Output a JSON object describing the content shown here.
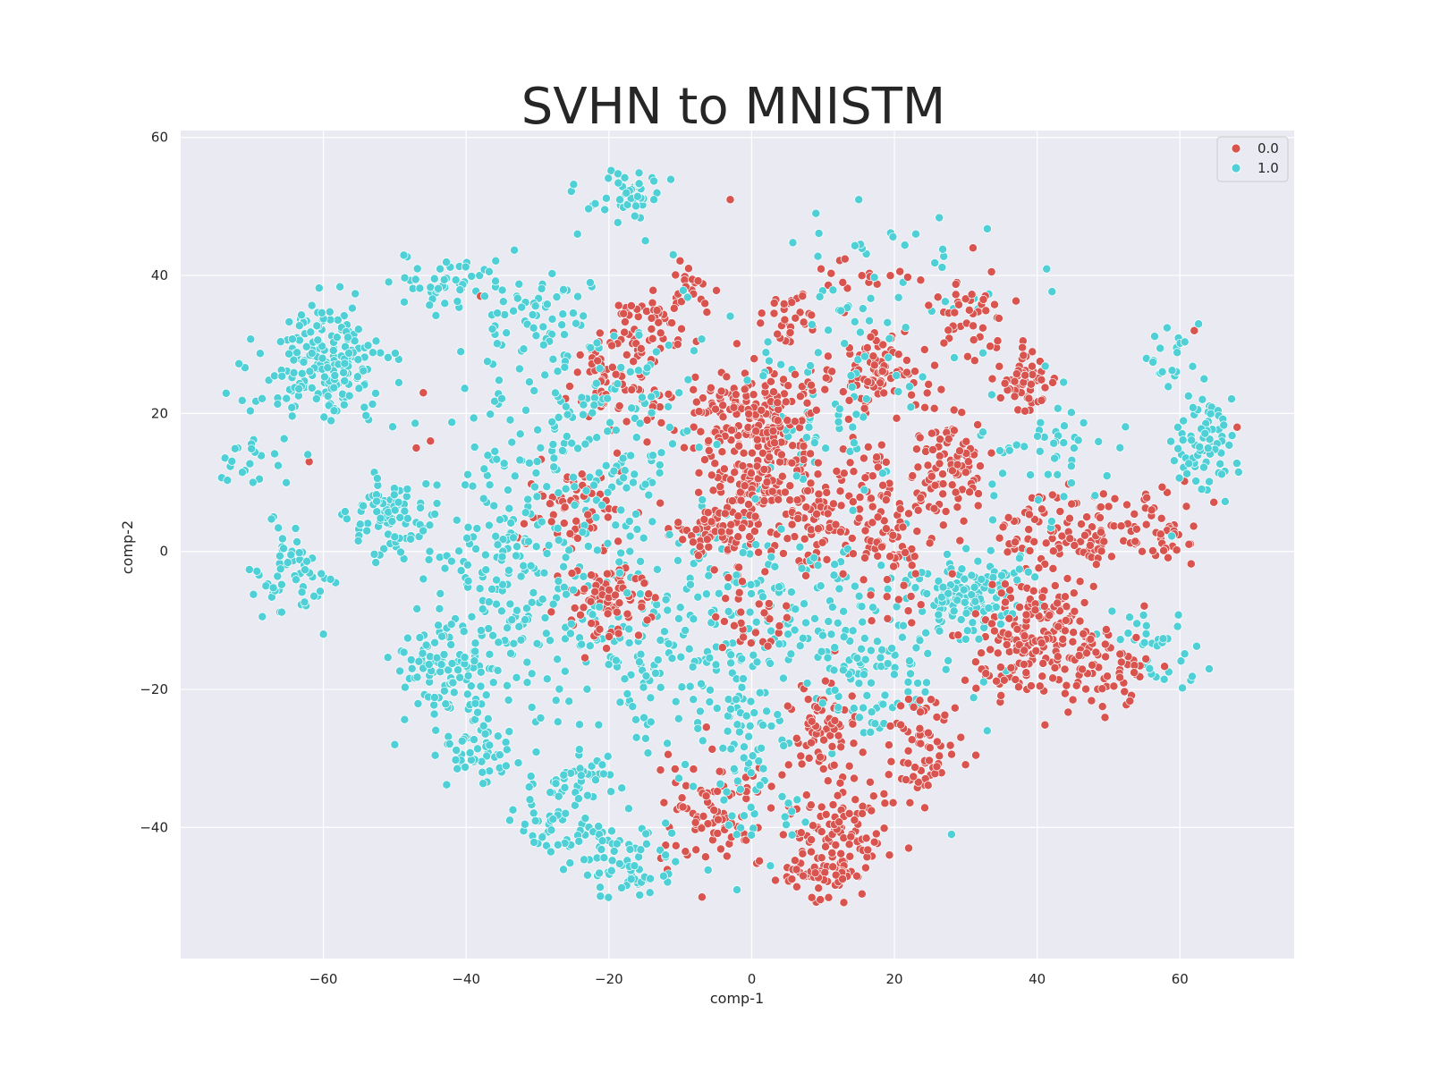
{
  "chart_data": {
    "type": "scatter",
    "title": "SVHN to MNISTM",
    "xlabel": "comp-1",
    "ylabel": "comp-2",
    "xlim": [
      -80,
      76
    ],
    "ylim": [
      -59,
      61
    ],
    "xticks": [
      -60,
      -40,
      -20,
      0,
      20,
      40,
      60
    ],
    "yticks": [
      -40,
      -20,
      0,
      20,
      40,
      60
    ],
    "grid": true,
    "legend_position": "top-right",
    "series": [
      {
        "name": "0.0",
        "color": "#d9534f",
        "clusters": [
          {
            "cx": -2,
            "cy": 20,
            "sx": 5,
            "sy": 4,
            "n": 140
          },
          {
            "cx": 4,
            "cy": 18,
            "sx": 3,
            "sy": 5,
            "n": 90
          },
          {
            "cx": 18,
            "cy": 26,
            "sx": 3,
            "sy": 3,
            "n": 95
          },
          {
            "cx": 28,
            "cy": 13,
            "sx": 3,
            "sy": 4,
            "n": 95
          },
          {
            "cx": 38,
            "cy": 25,
            "sx": 2.5,
            "sy": 2.5,
            "n": 60
          },
          {
            "cx": 42,
            "cy": -12,
            "sx": 4.5,
            "sy": 4,
            "n": 170
          },
          {
            "cx": 45,
            "cy": 3,
            "sx": 5,
            "sy": 3,
            "n": 110
          },
          {
            "cx": 58,
            "cy": 4,
            "sx": 3,
            "sy": 3,
            "n": 40
          },
          {
            "cx": -20,
            "cy": -7,
            "sx": 3.5,
            "sy": 3,
            "n": 90
          },
          {
            "cx": -25,
            "cy": 6,
            "sx": 3.5,
            "sy": 3,
            "n": 60
          },
          {
            "cx": -20,
            "cy": 25,
            "sx": 3,
            "sy": 4,
            "n": 70
          },
          {
            "cx": -14,
            "cy": 32,
            "sx": 3,
            "sy": 3,
            "n": 50
          },
          {
            "cx": -5,
            "cy": 3,
            "sx": 3,
            "sy": 2.5,
            "n": 70
          },
          {
            "cx": 12,
            "cy": -40,
            "sx": 3.5,
            "sy": 4.5,
            "n": 110
          },
          {
            "cx": -5,
            "cy": -38,
            "sx": 4,
            "sy": 4,
            "n": 90
          },
          {
            "cx": 10,
            "cy": -26,
            "sx": 2.5,
            "sy": 3.5,
            "n": 60
          },
          {
            "cx": 24,
            "cy": -28,
            "sx": 3,
            "sy": 4,
            "n": 70
          },
          {
            "cx": 20,
            "cy": 0,
            "sx": 3,
            "sy": 4,
            "n": 70
          },
          {
            "cx": 8,
            "cy": 4,
            "sx": 5,
            "sy": 3,
            "n": 90
          },
          {
            "cx": 5,
            "cy": 34,
            "sx": 3,
            "sy": 2,
            "n": 30
          },
          {
            "cx": 30,
            "cy": 35,
            "sx": 3,
            "sy": 3,
            "n": 40
          },
          {
            "cx": 0,
            "cy": -10,
            "sx": 3,
            "sy": 3,
            "n": 30
          },
          {
            "cx": 0,
            "cy": 10,
            "sx": 4,
            "sy": 3,
            "n": 80
          },
          {
            "cx": -9,
            "cy": 38,
            "sx": 2,
            "sy": 2,
            "n": 20
          },
          {
            "cx": 15,
            "cy": 40,
            "sx": 3,
            "sy": 1.5,
            "n": 15
          },
          {
            "cx": 10,
            "cy": -48,
            "sx": 3,
            "sy": 2,
            "n": 40
          },
          {
            "cx": 35,
            "cy": -15,
            "sx": 3,
            "sy": 4,
            "n": 40
          },
          {
            "cx": 50,
            "cy": -18,
            "sx": 3,
            "sy": 3,
            "n": 40
          },
          {
            "cx": 15,
            "cy": 10,
            "sx": 3,
            "sy": 3,
            "n": 40
          }
        ],
        "extra_points": [
          [
            -46,
            23
          ],
          [
            -62,
            13
          ],
          [
            -3,
            51
          ],
          [
            31,
            44
          ],
          [
            62,
            32
          ],
          [
            68,
            18
          ],
          [
            -45,
            16
          ],
          [
            -47,
            15
          ],
          [
            -38,
            37
          ],
          [
            22,
            -43
          ]
        ]
      },
      {
        "name": "1.0",
        "color": "#4fd0d6",
        "clusters": [
          {
            "cx": -60,
            "cy": 27,
            "sx": 4.5,
            "sy": 4,
            "n": 200
          },
          {
            "cx": -50,
            "cy": 5,
            "sx": 3,
            "sy": 3,
            "n": 80
          },
          {
            "cx": -64,
            "cy": -3,
            "sx": 2.5,
            "sy": 3,
            "n": 60
          },
          {
            "cx": -44,
            "cy": -17,
            "sx": 3.5,
            "sy": 3,
            "n": 90
          },
          {
            "cx": -38,
            "cy": -28,
            "sx": 3,
            "sy": 3,
            "n": 60
          },
          {
            "cx": -43,
            "cy": 39,
            "sx": 3,
            "sy": 2,
            "n": 40
          },
          {
            "cx": -17,
            "cy": 52,
            "sx": 2.5,
            "sy": 2,
            "n": 45
          },
          {
            "cx": 30,
            "cy": -6,
            "sx": 4,
            "sy": 3,
            "n": 140
          },
          {
            "cx": 63,
            "cy": 14,
            "sx": 2.5,
            "sy": 4,
            "n": 60
          },
          {
            "cx": 58,
            "cy": 29,
            "sx": 2,
            "sy": 2,
            "n": 20
          },
          {
            "cx": 64,
            "cy": 21,
            "sx": 1.5,
            "sy": 2,
            "n": 15
          },
          {
            "cx": -17,
            "cy": -45,
            "sx": 4,
            "sy": 3,
            "n": 70
          },
          {
            "cx": -27,
            "cy": -40,
            "sx": 3,
            "sy": 2,
            "n": 40
          },
          {
            "cx": -25,
            "cy": -33,
            "sx": 3,
            "sy": 2,
            "n": 40
          },
          {
            "cx": -25,
            "cy": 15,
            "sx": 8,
            "sy": 10,
            "n": 220
          },
          {
            "cx": -10,
            "cy": -12,
            "sx": 10,
            "sy": 8,
            "n": 230
          },
          {
            "cx": -35,
            "cy": -5,
            "sx": 6,
            "sy": 8,
            "n": 150
          },
          {
            "cx": 10,
            "cy": -10,
            "sx": 10,
            "sy": 8,
            "n": 150
          },
          {
            "cx": -70,
            "cy": 13,
            "sx": 2,
            "sy": 2,
            "n": 20
          },
          {
            "cx": 20,
            "cy": 38,
            "sx": 10,
            "sy": 6,
            "n": 50
          },
          {
            "cx": 57,
            "cy": -15,
            "sx": 4,
            "sy": 3,
            "n": 40
          },
          {
            "cx": 0,
            "cy": -30,
            "sx": 4,
            "sy": 6,
            "n": 60
          },
          {
            "cx": 10,
            "cy": 20,
            "sx": 6,
            "sy": 5,
            "n": 60
          },
          {
            "cx": 40,
            "cy": 15,
            "sx": 6,
            "sy": 5,
            "n": 50
          },
          {
            "cx": -30,
            "cy": 35,
            "sx": 5,
            "sy": 4,
            "n": 60
          },
          {
            "cx": 17,
            "cy": -17,
            "sx": 4,
            "sy": 4,
            "n": 50
          }
        ],
        "extra_points": [
          [
            -50,
            -28
          ],
          [
            -60,
            -12
          ],
          [
            33,
            -26
          ],
          [
            28,
            -41
          ],
          [
            23,
            46
          ],
          [
            9,
            49
          ],
          [
            15,
            51
          ],
          [
            -11,
            43
          ],
          [
            -67,
            5
          ],
          [
            -72,
            15
          ]
        ]
      }
    ]
  }
}
